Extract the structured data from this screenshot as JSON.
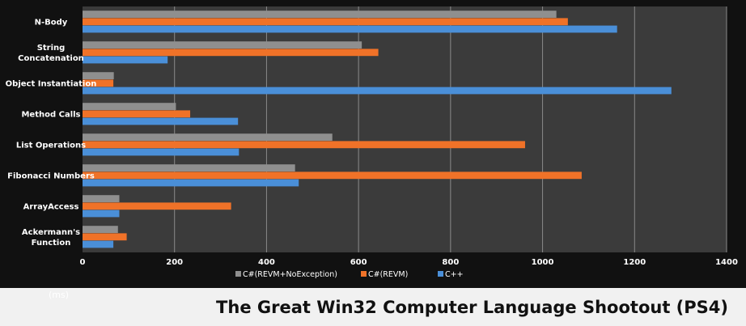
{
  "page": {
    "title": "The Great Win32 Computer Language Shootout (PS4)",
    "unit_label": "(ms)"
  },
  "colors": {
    "background": "#111111",
    "plot_area": "#3b3b3b",
    "gridline": "#8a8a8a",
    "text": "#ffffff"
  },
  "chart_data": {
    "type": "bar",
    "orientation": "horizontal",
    "title": "",
    "xlabel": "(ms)",
    "ylabel": "",
    "xlim": [
      0,
      1400
    ],
    "xticks": [
      0,
      200,
      400,
      600,
      800,
      1000,
      1200,
      1400
    ],
    "grid": true,
    "legend_position": "bottom",
    "categories": [
      "N-Body",
      "String Concatenation",
      "Object Instantiation",
      "Method Calls",
      "List Operations",
      "Fibonacci Numbers",
      "ArrayAccess",
      "Ackermann's Function"
    ],
    "category_lines": [
      [
        "N-Body"
      ],
      [
        "String",
        "Concatenation"
      ],
      [
        "Object Instantiation"
      ],
      [
        "Method Calls"
      ],
      [
        "List Operations"
      ],
      [
        "Fibonacci Numbers"
      ],
      [
        "ArrayAccess"
      ],
      [
        "Ackermann's",
        "Function"
      ]
    ],
    "series": [
      {
        "name": "C#(REVM+NoException)",
        "color": "#8f8f8f",
        "values": [
          1030,
          607,
          68,
          203,
          543,
          462,
          80,
          77
        ]
      },
      {
        "name": "C#(REVM)",
        "color": "#f07228",
        "values": [
          1055,
          643,
          67,
          234,
          962,
          1085,
          323,
          96
        ]
      },
      {
        "name": "C++",
        "color": "#4a8fd8",
        "values": [
          1162,
          185,
          1280,
          338,
          340,
          470,
          80,
          67
        ]
      }
    ]
  }
}
